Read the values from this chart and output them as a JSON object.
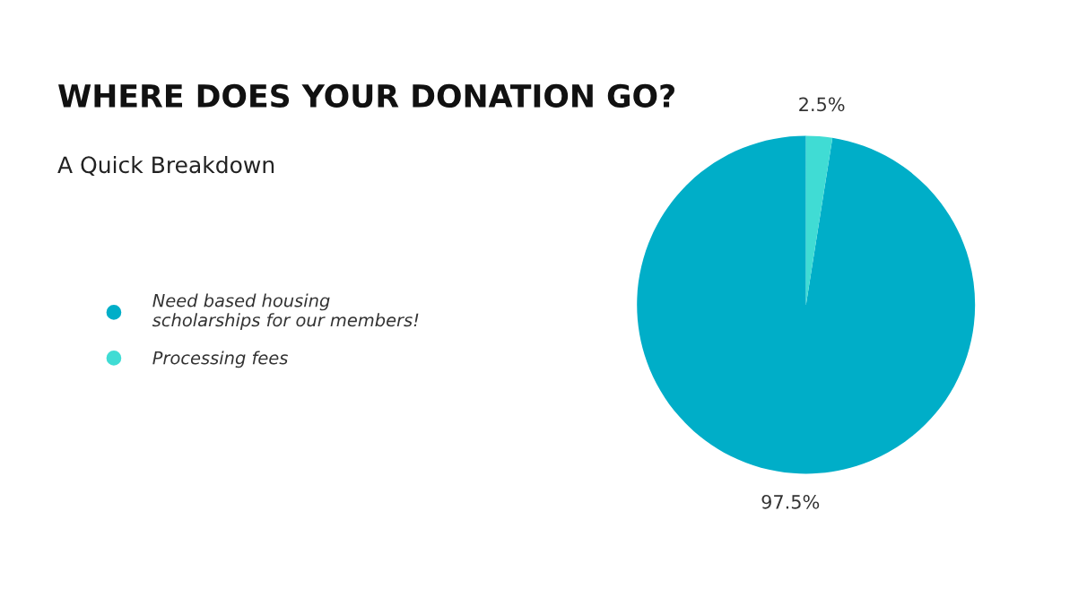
{
  "chart_data": {
    "type": "pie",
    "title": "WHERE DOES YOUR DONATION GO?",
    "subtitle": "A Quick Breakdown",
    "categories": [
      "Need based housing\nscholarships for our members!",
      "Processing fees"
    ],
    "values": [
      97.5,
      2.5
    ],
    "colors": [
      "#00aec8",
      "#40dcd4"
    ],
    "value_labels": [
      "97.5%",
      "2.5%"
    ],
    "legend": "left"
  }
}
